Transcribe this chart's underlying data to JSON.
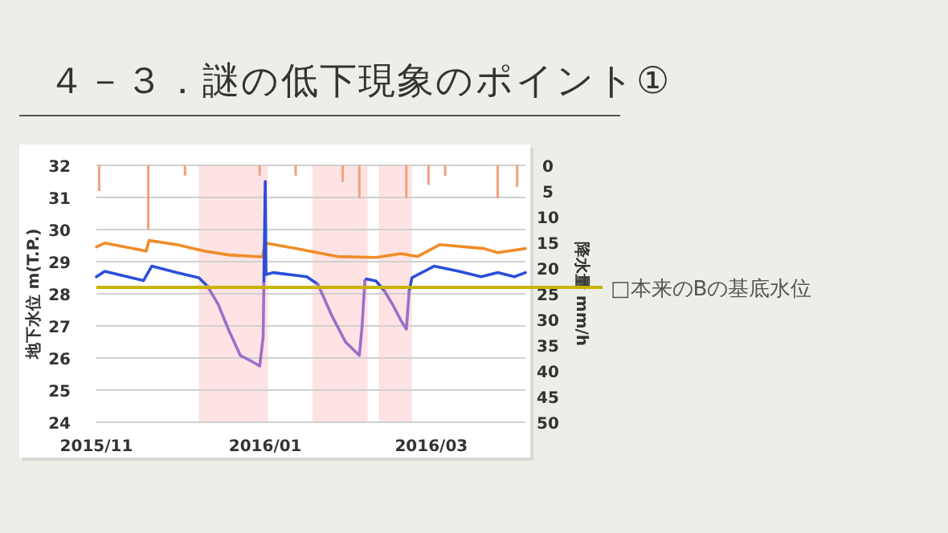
{
  "chart_data": {
    "type": "line",
    "title": "４－３．謎の低下現象のポイント①",
    "ylabel": "地下水位 m(T.P.)",
    "y2label": "降水量 mm/h",
    "xlim": [
      "2015-11-01",
      "2016-04-04"
    ],
    "xticks": [
      {
        "value": "2015-11-01",
        "label": "2015/11"
      },
      {
        "value": "2016-01-01",
        "label": "2016/01"
      },
      {
        "value": "2016-03-01",
        "label": "2016/03"
      }
    ],
    "ylim": [
      24,
      32
    ],
    "yticks": [
      24,
      25,
      26,
      27,
      28,
      29,
      30,
      31,
      32
    ],
    "y2lim": [
      50,
      0
    ],
    "y2ticks": [
      0,
      5,
      10,
      15,
      20,
      25,
      30,
      35,
      40,
      45,
      50
    ],
    "grid": "y",
    "series": [
      {
        "type": "bar",
        "axis": "y2",
        "color": "#f4a07a",
        "x": [
          "2015-11-02",
          "2015-11-19T18:00",
          "2015-12-03",
          "2015-12-30",
          "2016-01-12",
          "2016-01-29",
          "2016-02-04",
          "2016-02-21",
          "2016-02-29",
          "2016-03-06",
          "2016-03-25",
          "2016-04-01"
        ],
        "values": [
          5,
          12.5,
          2,
          2,
          2,
          3.2,
          6.4,
          6.4,
          3.8,
          2,
          6.4,
          4.2
        ]
      },
      {
        "color": "#f08c28",
        "x": [
          "2015-11-01",
          "2015-11-04",
          "2015-11-19",
          "2015-11-20",
          "2015-11-30",
          "2015-12-10",
          "2015-12-19",
          "2015-12-31",
          "2016-01-01",
          "2016-01-12",
          "2016-01-27",
          "2016-02-10",
          "2016-02-19",
          "2016-02-25",
          "2016-03-04",
          "2016-03-20",
          "2016-03-25",
          "2016-04-04"
        ],
        "values": [
          29.46,
          29.58,
          29.33,
          29.66,
          29.53,
          29.33,
          29.21,
          29.15,
          29.58,
          29.41,
          29.16,
          29.13,
          29.25,
          29.16,
          29.53,
          29.41,
          29.28,
          29.41
        ]
      },
      {
        "color": "#2a4fd8",
        "x": [
          "2015-11-01",
          "2015-11-04",
          "2015-11-18",
          "2015-11-21",
          "2015-11-30",
          "2015-12-08",
          "2015-12-11",
          "2015-12-20",
          "2015-12-31T12:00",
          "2016-01-01",
          "2016-01-01T06:00",
          "2016-01-04",
          "2016-01-16",
          "2016-01-20",
          "2016-02-01",
          "2016-02-06",
          "2016-02-06T12:00",
          "2016-02-10",
          "2016-02-13",
          "2016-02-18",
          "2016-02-22",
          "2016-02-23",
          "2016-03-02",
          "2016-03-11",
          "2016-03-19",
          "2016-03-25",
          "2016-03-31",
          "2016-04-04"
        ],
        "values": [
          28.53,
          28.7,
          28.41,
          28.86,
          28.66,
          28.5,
          28.25,
          null,
          28.33,
          31.5,
          28.6,
          28.66,
          28.53,
          28.3,
          null,
          28.41,
          28.46,
          28.4,
          28.1,
          null,
          28.08,
          28.5,
          28.86,
          28.7,
          28.53,
          28.66,
          28.53,
          28.66
        ]
      },
      {
        "color": "#9c6fc8",
        "x": [
          "2015-12-11",
          "2015-12-15",
          "2015-12-19",
          "2015-12-23",
          "2015-12-27",
          "2015-12-30",
          "2015-12-31T06:00",
          "2015-12-31T12:00",
          "2016-01-10",
          "2016-01-20",
          "2016-01-25",
          "2016-01-30",
          "2016-02-04",
          "2016-02-05",
          "2016-02-06",
          "2016-02-09",
          "2016-02-13",
          "2016-02-16",
          "2016-02-19",
          "2016-02-21",
          "2016-02-22"
        ],
        "values": [
          28.25,
          27.67,
          26.83,
          26.08,
          25.9,
          25.75,
          26.67,
          28.33,
          null,
          28.3,
          27.33,
          26.5,
          26.08,
          27.0,
          28.41,
          null,
          28.1,
          27.67,
          27.17,
          26.9,
          28.08
        ]
      }
    ],
    "bands": [
      {
        "axis": "x",
        "from": "2015-12-08",
        "to": "2016-01-02",
        "color": "#fde3e3"
      },
      {
        "axis": "x",
        "from": "2016-01-18",
        "to": "2016-02-07",
        "color": "#fde3e3"
      },
      {
        "axis": "x",
        "from": "2016-02-11",
        "to": "2016-02-23",
        "color": "#fde3e3"
      }
    ],
    "ref_lines": [
      {
        "axis": "y",
        "value": 28.2,
        "label": "□本来のBの基底水位",
        "color": "#c8b400"
      }
    ]
  }
}
